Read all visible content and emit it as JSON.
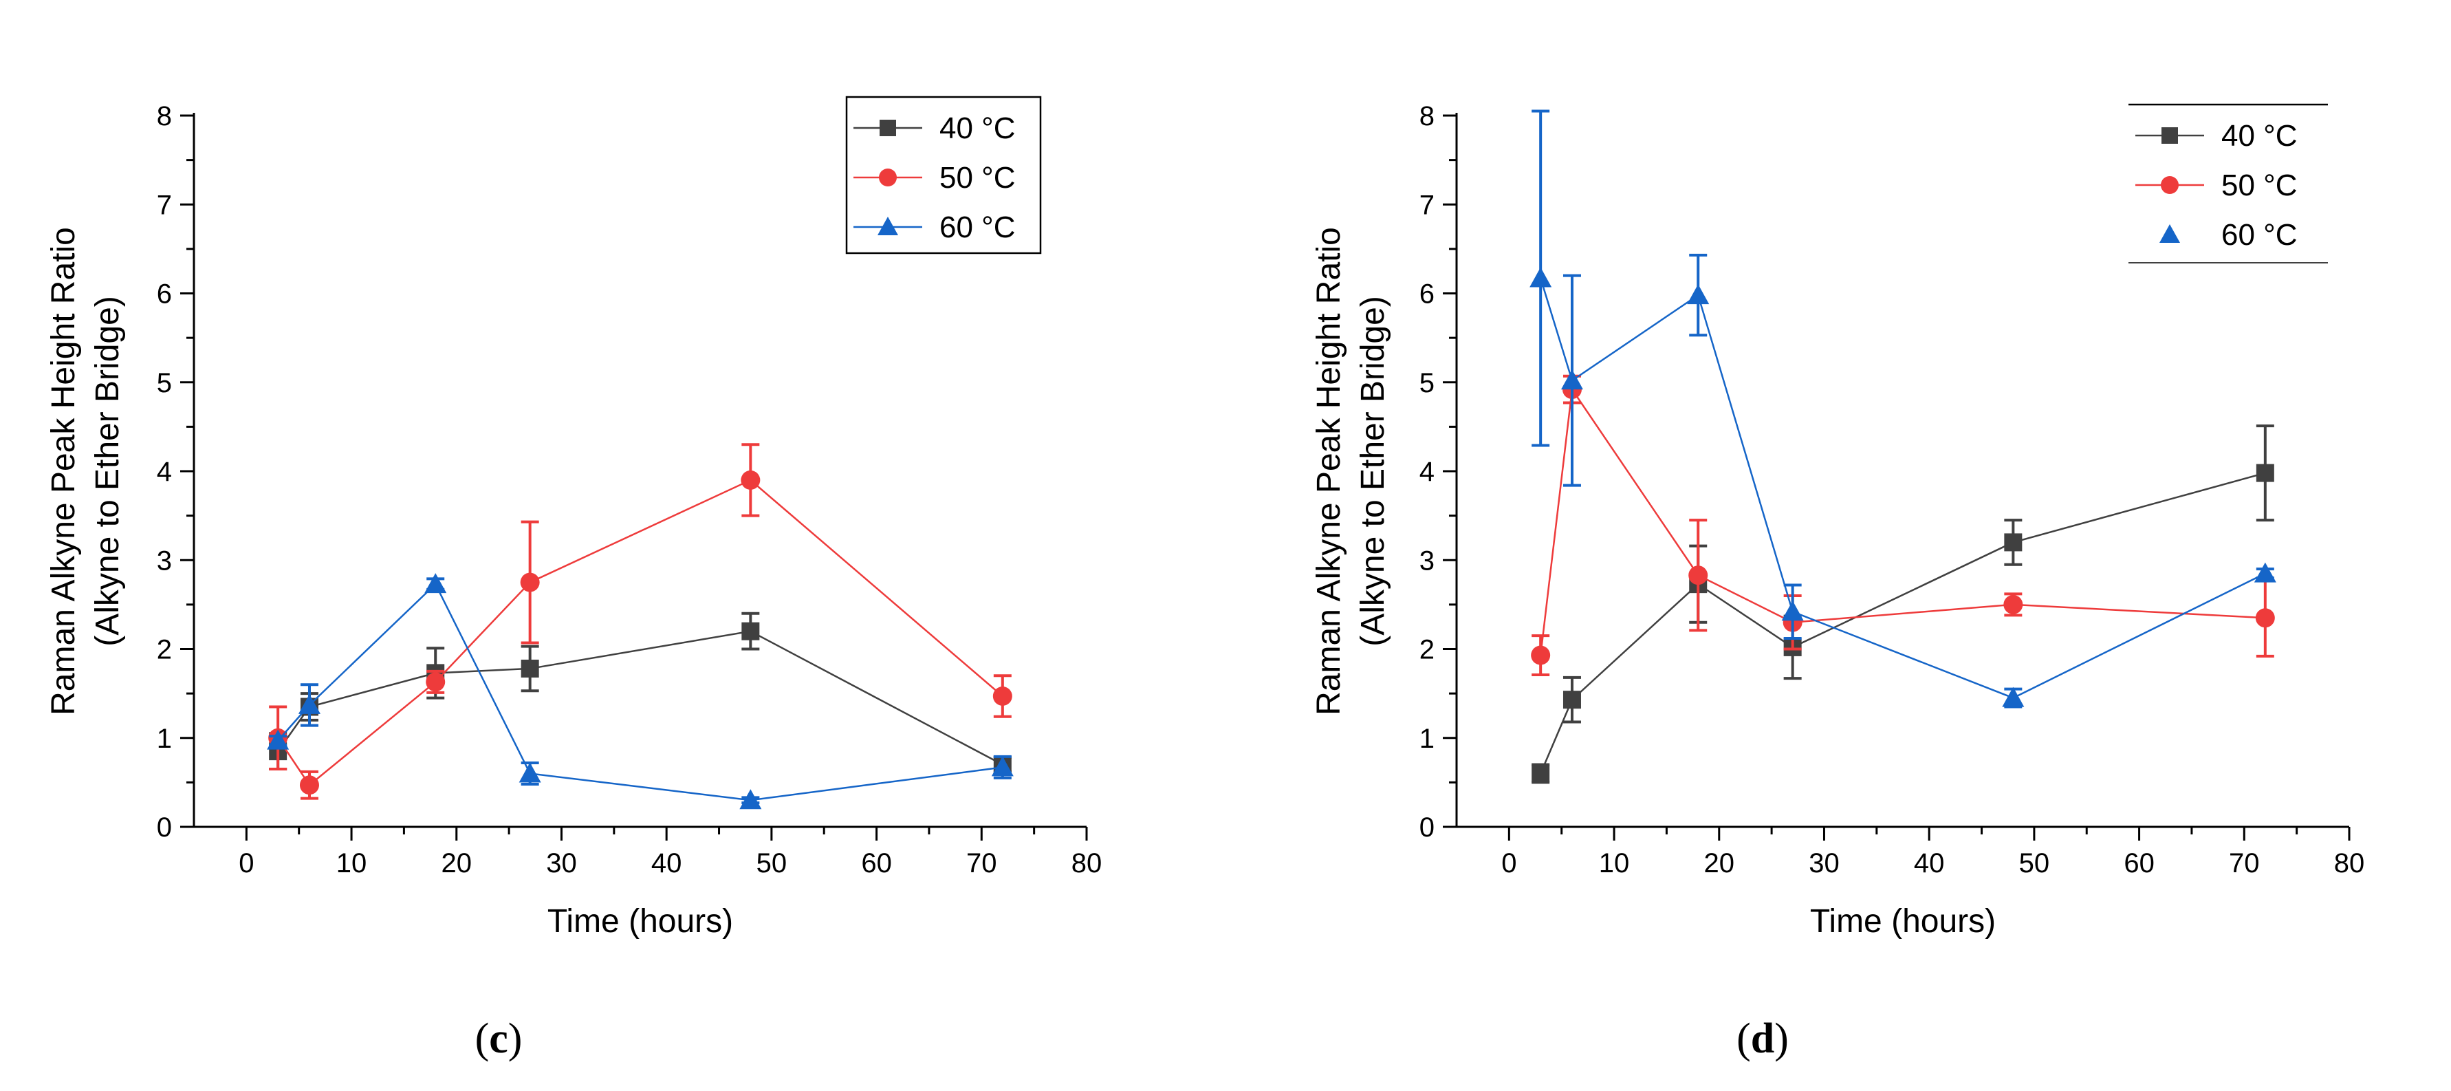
{
  "chart_data": [
    {
      "type": "line",
      "panel_label": "c",
      "xlabel": "Time (hours)",
      "ylabel_line1": "Raman Alkyne Peak Height Ratio",
      "ylabel_line2": "(Alkyne to Ether Bridge)",
      "xlim": [
        -5,
        80
      ],
      "ylim": [
        0,
        8
      ],
      "xticks": [
        0,
        10,
        20,
        30,
        40,
        50,
        60,
        70,
        80
      ],
      "yticks": [
        0,
        1,
        2,
        3,
        4,
        5,
        6,
        7,
        8
      ],
      "legend_position": "top-right",
      "legend_frame": "box",
      "series": [
        {
          "name": "40 °C",
          "color": "#404040",
          "marker": "square",
          "x": [
            3,
            6,
            18,
            27,
            48,
            72
          ],
          "y": [
            0.85,
            1.35,
            1.73,
            1.78,
            2.2,
            0.7
          ],
          "err": [
            0.2,
            0.15,
            0.28,
            0.25,
            0.2,
            0.08
          ]
        },
        {
          "name": "50 °C",
          "color": "#ee3b3b",
          "marker": "circle",
          "x": [
            3,
            6,
            18,
            27,
            48,
            72
          ],
          "y": [
            1.0,
            0.47,
            1.63,
            2.75,
            3.9,
            1.47
          ],
          "err": [
            0.35,
            0.15,
            0.12,
            0.68,
            0.4,
            0.23
          ]
        },
        {
          "name": "60 °C",
          "color": "#1565c8",
          "marker": "triangle",
          "x": [
            3,
            6,
            18,
            27,
            48,
            72
          ],
          "y": [
            0.97,
            1.37,
            2.73,
            0.6,
            0.3,
            0.67
          ],
          "err": [
            0.05,
            0.23,
            0.06,
            0.12,
            0.03,
            0.12
          ]
        }
      ]
    },
    {
      "type": "line",
      "panel_label": "d",
      "xlabel": "Time (hours)",
      "ylabel_line1": "Raman Alkyne Peak Height Ratio",
      "ylabel_line2": "(Alkyne to Ether Bridge)",
      "xlim": [
        -5,
        80
      ],
      "ylim": [
        0,
        8
      ],
      "xticks": [
        0,
        10,
        20,
        30,
        40,
        50,
        60,
        70,
        80
      ],
      "yticks": [
        0,
        1,
        2,
        3,
        4,
        5,
        6,
        7,
        8
      ],
      "legend_position": "top-right",
      "legend_frame": "lines",
      "series": [
        {
          "name": "40 °C",
          "color": "#404040",
          "marker": "square",
          "x": [
            3,
            6,
            18,
            27,
            48,
            72
          ],
          "y": [
            0.6,
            1.43,
            2.73,
            2.02,
            3.2,
            3.98
          ],
          "err": [
            0.1,
            0.25,
            0.43,
            0.35,
            0.25,
            0.53
          ]
        },
        {
          "name": "50 °C",
          "color": "#ee3b3b",
          "marker": "circle",
          "x": [
            3,
            6,
            18,
            27,
            48,
            72
          ],
          "y": [
            1.93,
            4.92,
            2.83,
            2.3,
            2.5,
            2.35
          ],
          "err": [
            0.22,
            0.15,
            0.62,
            0.3,
            0.12,
            0.43
          ]
        },
        {
          "name": "60 °C",
          "color": "#1565c8",
          "marker": "triangle",
          "x": [
            3,
            6,
            18,
            27,
            48,
            72
          ],
          "y": [
            6.17,
            5.02,
            5.98,
            2.42,
            1.45,
            2.85
          ],
          "err": [
            1.88,
            1.18,
            0.45,
            0.3,
            0.1,
            0.05
          ]
        }
      ]
    }
  ]
}
